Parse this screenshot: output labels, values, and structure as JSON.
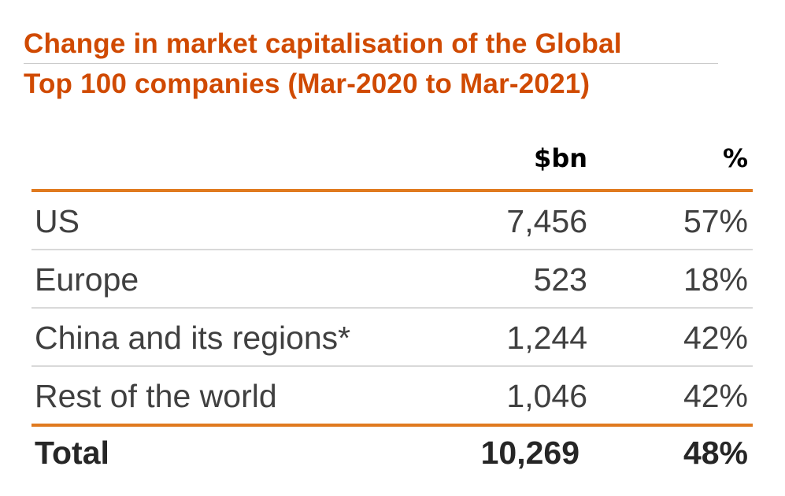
{
  "title": {
    "line1": "Change in market capitalisation of the Global",
    "line2": "Top 100 companies (Mar-2020 to Mar-2021)"
  },
  "table": {
    "headers": {
      "label": "",
      "bn": "$bn",
      "pct": "%"
    },
    "rows": [
      {
        "label": "US",
        "bn": "7,456",
        "pct": "57%"
      },
      {
        "label": "Europe",
        "bn": "523",
        "pct": "18%"
      },
      {
        "label": "China and its regions*",
        "bn": "1,244",
        "pct": "42%"
      },
      {
        "label": "Rest of the world",
        "bn": "1,046",
        "pct": "42%"
      }
    ],
    "total": {
      "label": "Total",
      "bn": "10,269",
      "pct": "48%"
    }
  },
  "colors": {
    "title": "#d04a02",
    "rule_accent": "#e07a1f",
    "rule_light": "#d9d9d9",
    "text": "#404040"
  }
}
